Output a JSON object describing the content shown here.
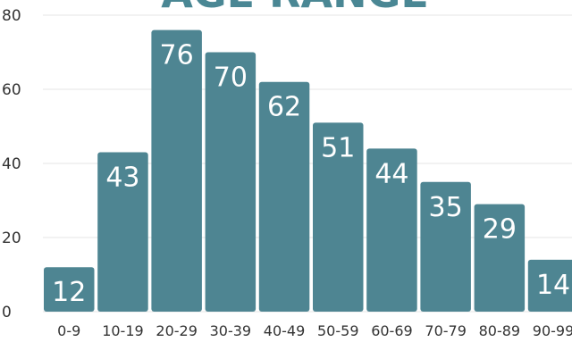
{
  "chart_data": {
    "type": "bar",
    "title": "AGE RANGE",
    "categories": [
      "0-9",
      "10-19",
      "20-29",
      "30-39",
      "40-49",
      "50-59",
      "60-69",
      "70-79",
      "80-89",
      "90-99"
    ],
    "values": [
      12,
      43,
      76,
      70,
      62,
      51,
      44,
      35,
      29,
      14
    ],
    "xlabel": "",
    "ylabel": "",
    "ylim": [
      0,
      80
    ],
    "yticks": [
      0,
      20,
      40,
      60,
      80
    ],
    "grid": true,
    "colors": {
      "bar": "#4e8592",
      "title": "#4a8794",
      "label": "#ffffff"
    }
  }
}
